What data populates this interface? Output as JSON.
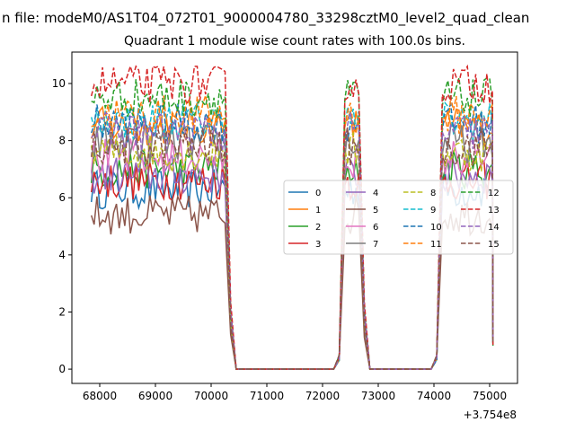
{
  "chart_data": {
    "type": "line",
    "suptitle": "n file: modeM0/AS1T04_072T01_9000004780_33298cztM0_level2_quad_clean",
    "title": "Quadrant 1 module wise count rates with 100.0s bins.",
    "xlabel": "",
    "ylabel": "",
    "x_offset_text": "+3.754e8",
    "xlim": [
      67500,
      75500
    ],
    "ylim": [
      -0.5,
      11.1
    ],
    "xticks": [
      "68000",
      "69000",
      "70000",
      "71000",
      "72000",
      "73000",
      "74000",
      "75000"
    ],
    "yticks": [
      "0",
      "2",
      "4",
      "6",
      "8",
      "10"
    ],
    "legend": {
      "placement": "center-right",
      "columns": 4
    },
    "segments": [
      {
        "start": 67850,
        "end": 70250
      },
      {
        "start": 72400,
        "end": 72650
      },
      {
        "start": 74150,
        "end": 75050
      }
    ],
    "series": [
      {
        "name": "0",
        "color": "#1f77b4",
        "dash": "solid",
        "level": 6.3
      },
      {
        "name": "1",
        "color": "#ff7f0e",
        "dash": "solid",
        "level": 8.5
      },
      {
        "name": "2",
        "color": "#2ca02c",
        "dash": "solid",
        "level": 7.0
      },
      {
        "name": "3",
        "color": "#d62728",
        "dash": "solid",
        "level": 6.6
      },
      {
        "name": "4",
        "color": "#9467bd",
        "dash": "solid",
        "level": 6.8
      },
      {
        "name": "5",
        "color": "#8c564b",
        "dash": "solid",
        "level": 5.4
      },
      {
        "name": "6",
        "color": "#e377c2",
        "dash": "solid",
        "level": 7.4
      },
      {
        "name": "7",
        "color": "#7f7f7f",
        "dash": "solid",
        "level": 7.9
      },
      {
        "name": "8",
        "color": "#bcbd22",
        "dash": "dashed",
        "level": 7.6
      },
      {
        "name": "9",
        "color": "#17becf",
        "dash": "dashed",
        "level": 8.7
      },
      {
        "name": "10",
        "color": "#1f77b4",
        "dash": "dashed",
        "level": 8.6
      },
      {
        "name": "11",
        "color": "#ff7f0e",
        "dash": "dashed",
        "level": 8.9
      },
      {
        "name": "12",
        "color": "#2ca02c",
        "dash": "dashed",
        "level": 9.5
      },
      {
        "name": "13",
        "color": "#d62728",
        "dash": "dashed",
        "level": 10.0
      },
      {
        "name": "14",
        "color": "#9467bd",
        "dash": "dashed",
        "level": 8.3
      },
      {
        "name": "15",
        "color": "#8c564b",
        "dash": "dashed",
        "level": 7.8
      }
    ]
  }
}
